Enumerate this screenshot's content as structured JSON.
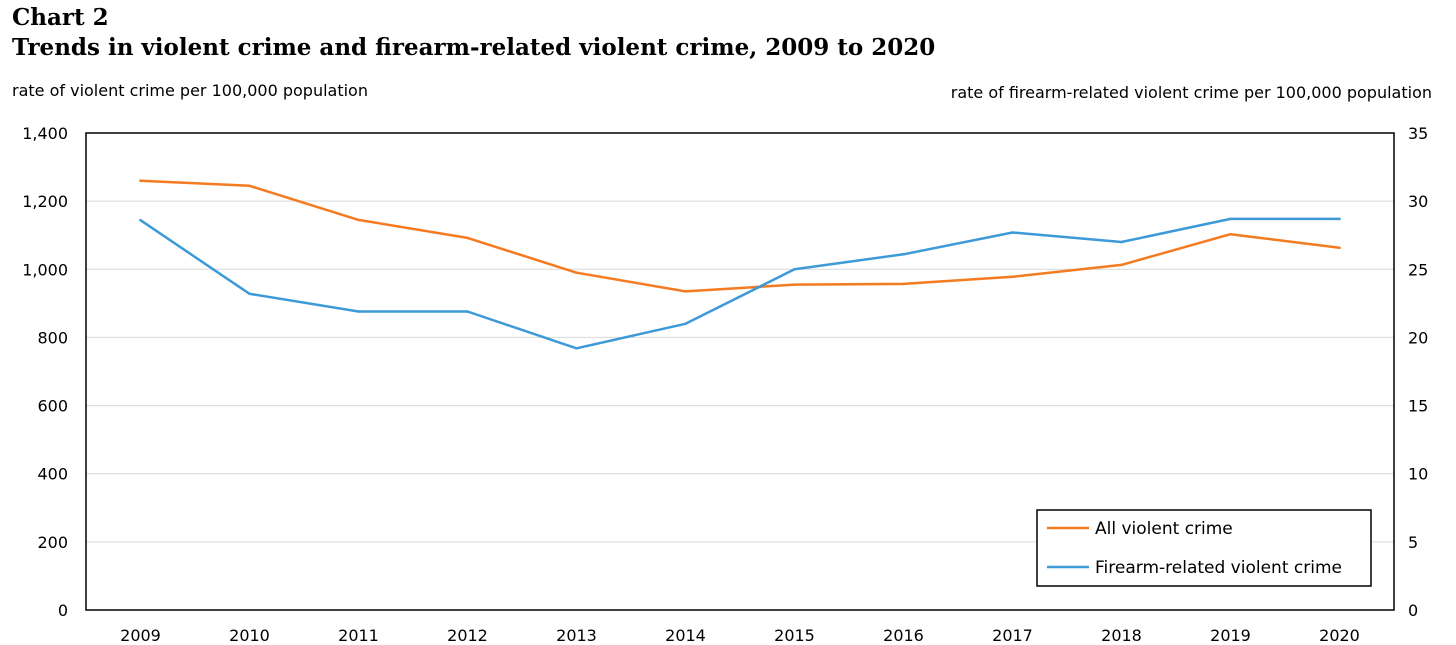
{
  "chart_number": "Chart 2",
  "chart_data": {
    "type": "line",
    "title": "Trends in violent crime and firearm-related violent crime, 2009 to 2020",
    "xlabel": "",
    "ylabel": "rate of violent crime per 100,000 population",
    "y2label": "rate of firearm-related violent crime per 100,000 population",
    "categories": [
      "2009",
      "2010",
      "2011",
      "2012",
      "2013",
      "2014",
      "2015",
      "2016",
      "2017",
      "2018",
      "2019",
      "2020"
    ],
    "ylim": [
      0,
      1400
    ],
    "y2lim": [
      0,
      35
    ],
    "yticks": [
      "0",
      "200",
      "400",
      "600",
      "800",
      "1,000",
      "1,200",
      "1,400"
    ],
    "y2ticks": [
      "0",
      "5",
      "10",
      "15",
      "20",
      "25",
      "30",
      "35"
    ],
    "grid": true,
    "legend_position": "bottom-right",
    "series": [
      {
        "name": "All violent crime",
        "axis": "left",
        "color": "#f47b20",
        "values": [
          1260,
          1245,
          1145,
          1092,
          990,
          935,
          955,
          957,
          978,
          1013,
          1103,
          1063
        ]
      },
      {
        "name": "Firearm-related violent crime",
        "axis": "right",
        "color": "#3d9ad8",
        "values": [
          28.6,
          23.2,
          21.9,
          21.9,
          19.2,
          21.0,
          25.0,
          26.1,
          27.7,
          27.0,
          28.7,
          28.7
        ]
      }
    ]
  }
}
